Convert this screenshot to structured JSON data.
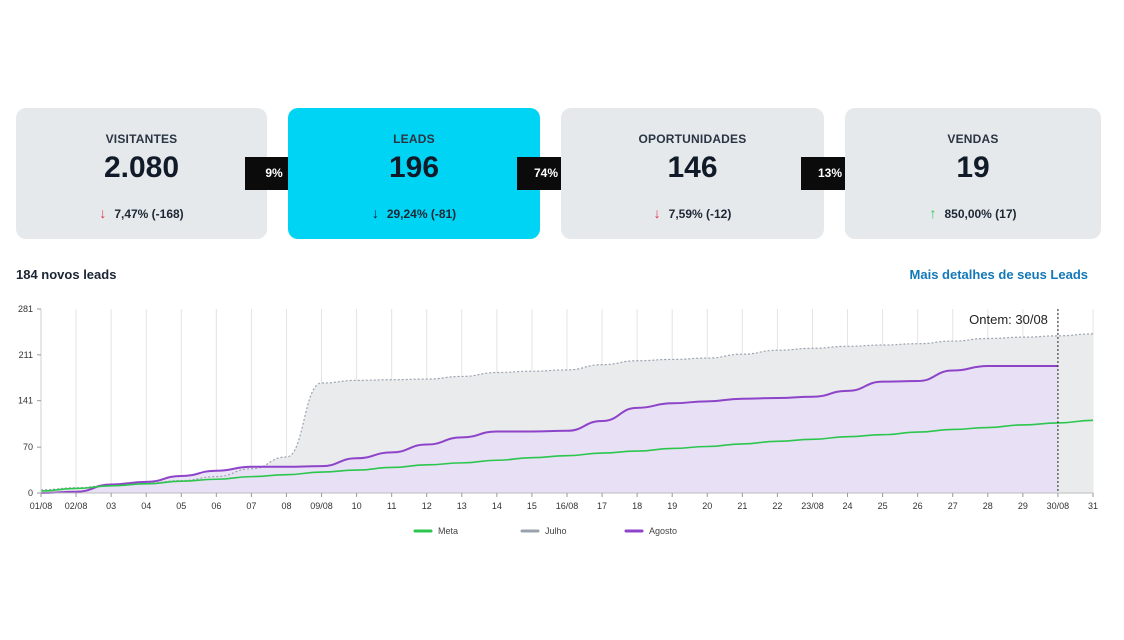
{
  "funnel": {
    "cards": [
      {
        "label": "VISITANTES",
        "value": "2.080",
        "delta": "7,47% (-168)",
        "trend": "down-red"
      },
      {
        "label": "LEADS",
        "value": "196",
        "delta": "29,24% (-81)",
        "trend": "down-dark"
      },
      {
        "label": "OPORTUNIDADES",
        "value": "146",
        "delta": "7,59% (-12)",
        "trend": "down-red"
      },
      {
        "label": "VENDAS",
        "value": "19",
        "delta": "850,00% (17)",
        "trend": "up-green"
      }
    ],
    "conversions": [
      "9%",
      "74%",
      "13%"
    ],
    "arrows": {
      "down": "↓",
      "up": "↑"
    }
  },
  "summary": {
    "leads_text": "184 novos leads",
    "details_link": "Mais detalhes de seus Leads"
  },
  "colors": {
    "active_card": "#00d4f5",
    "card": "#e6e9ec",
    "meta": "#2cc64e",
    "julho": "#9aa3ad",
    "agosto": "#8e44c9",
    "link": "#1478b8"
  },
  "chart_data": {
    "type": "line",
    "x": [
      "01/08",
      "02/08",
      "03",
      "04",
      "05",
      "06",
      "07",
      "08",
      "09/08",
      "10",
      "11",
      "12",
      "13",
      "14",
      "15",
      "16/08",
      "17",
      "18",
      "19",
      "20",
      "21",
      "22",
      "23/08",
      "24",
      "25",
      "26",
      "27",
      "28",
      "29",
      "30/08",
      "31"
    ],
    "y_ticks": [
      0,
      70,
      141,
      211,
      281
    ],
    "ylim": [
      0,
      281
    ],
    "annotation": "Ontem: 30/08",
    "series": [
      {
        "name": "Meta",
        "type": "line",
        "values": [
          3,
          7,
          11,
          14,
          18,
          21,
          25,
          28,
          32,
          35,
          39,
          43,
          46,
          50,
          54,
          57,
          61,
          64,
          68,
          71,
          75,
          79,
          82,
          86,
          89,
          93,
          97,
          100,
          104,
          107,
          111
        ]
      },
      {
        "name": "Julho",
        "type": "area",
        "values": [
          5,
          8,
          12,
          15,
          19,
          25,
          37,
          55,
          168,
          172,
          173,
          174,
          178,
          184,
          186,
          188,
          196,
          202,
          204,
          206,
          212,
          218,
          221,
          224,
          226,
          228,
          232,
          236,
          238,
          240,
          243
        ]
      },
      {
        "name": "Agosto",
        "type": "area",
        "values": [
          0,
          2,
          13,
          17,
          26,
          34,
          40,
          40,
          41,
          53,
          62,
          74,
          85,
          94,
          94,
          95,
          110,
          130,
          137,
          140,
          144,
          145,
          147,
          156,
          170,
          171,
          187,
          194,
          194,
          194,
          null
        ]
      }
    ]
  }
}
